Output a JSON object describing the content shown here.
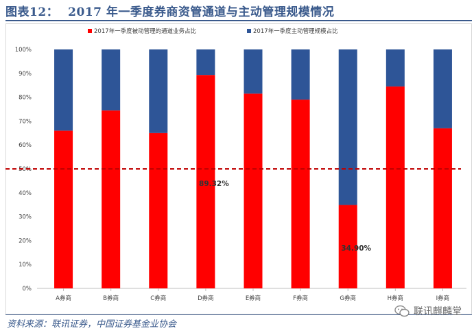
{
  "header": {
    "figure_label": "图表12：",
    "title": "2017 年一季度券商资管通道与主动管理规模情况"
  },
  "chart_data": {
    "type": "bar",
    "stacked": true,
    "categories": [
      "A券商",
      "B券商",
      "C券商",
      "D券商",
      "E券商",
      "F券商",
      "G券商",
      "H券商",
      "I券商"
    ],
    "series": [
      {
        "name": "2017年一季度被动管理的通道业务占比",
        "color": "#ff0000",
        "values": [
          66,
          74.5,
          65,
          89.32,
          81.5,
          79,
          34.9,
          84.5,
          67
        ]
      },
      {
        "name": "2017年一季度主动管理规模占比",
        "color": "#2e5597",
        "values": [
          34,
          25.5,
          35,
          10.68,
          18.5,
          21,
          65.1,
          15.5,
          33
        ]
      }
    ],
    "yticks": [
      "0%",
      "10%",
      "20%",
      "30%",
      "40%",
      "50%",
      "60%",
      "70%",
      "80%",
      "90%",
      "100%"
    ],
    "ylim": [
      0,
      100
    ],
    "reference_line": {
      "value": 50,
      "color": "#c00000",
      "style": "dashed"
    },
    "annotations": [
      {
        "category": "D券商",
        "text": "89.32%",
        "y": 44
      },
      {
        "category": "G券商",
        "text": "34.90%",
        "y": 17
      }
    ],
    "legend_position": "top"
  },
  "footer": {
    "source": "资料来源：联讯证券，中国证券基金业协会",
    "watermark": "联讯麒麟堂"
  }
}
